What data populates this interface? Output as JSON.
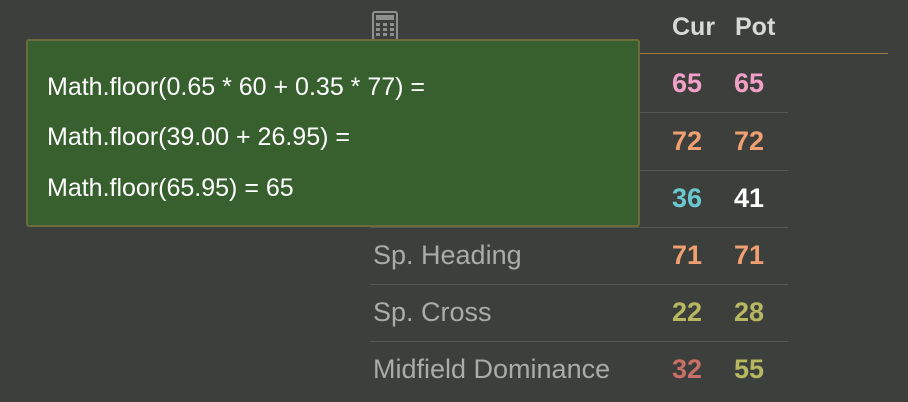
{
  "header": {
    "icon": "calculator-icon",
    "cur_label": "Cur",
    "pot_label": "Pot",
    "divider_color": "#9c7a3e"
  },
  "tooltip": {
    "lines": [
      "Math.floor(0.65 * 60 + 0.35 * 77) =",
      "Math.floor(39.00 + 26.95) =",
      "Math.floor(65.95) = 65"
    ],
    "background": "#38602f"
  },
  "rows": [
    {
      "label": "",
      "cur": "65",
      "pot": "65",
      "cur_color": "#f2a0c8",
      "pot_color": "#f2a0c8"
    },
    {
      "label": "",
      "cur": "72",
      "pot": "72",
      "cur_color": "#f0a070",
      "pot_color": "#f0a070"
    },
    {
      "label": "",
      "cur": "36",
      "pot": "41",
      "cur_color": "#6cc8d0",
      "pot_color": "#ffffff"
    },
    {
      "label": "Sp. Heading",
      "cur": "71",
      "pot": "71",
      "cur_color": "#f0a070",
      "pot_color": "#f0a070"
    },
    {
      "label": "Sp. Cross",
      "cur": "22",
      "pot": "28",
      "cur_color": "#b8b860",
      "pot_color": "#b8b860"
    },
    {
      "label": "Midfield Dominance",
      "cur": "32",
      "pot": "55",
      "cur_color": "#c87068",
      "pot_color": "#b8b860"
    }
  ]
}
